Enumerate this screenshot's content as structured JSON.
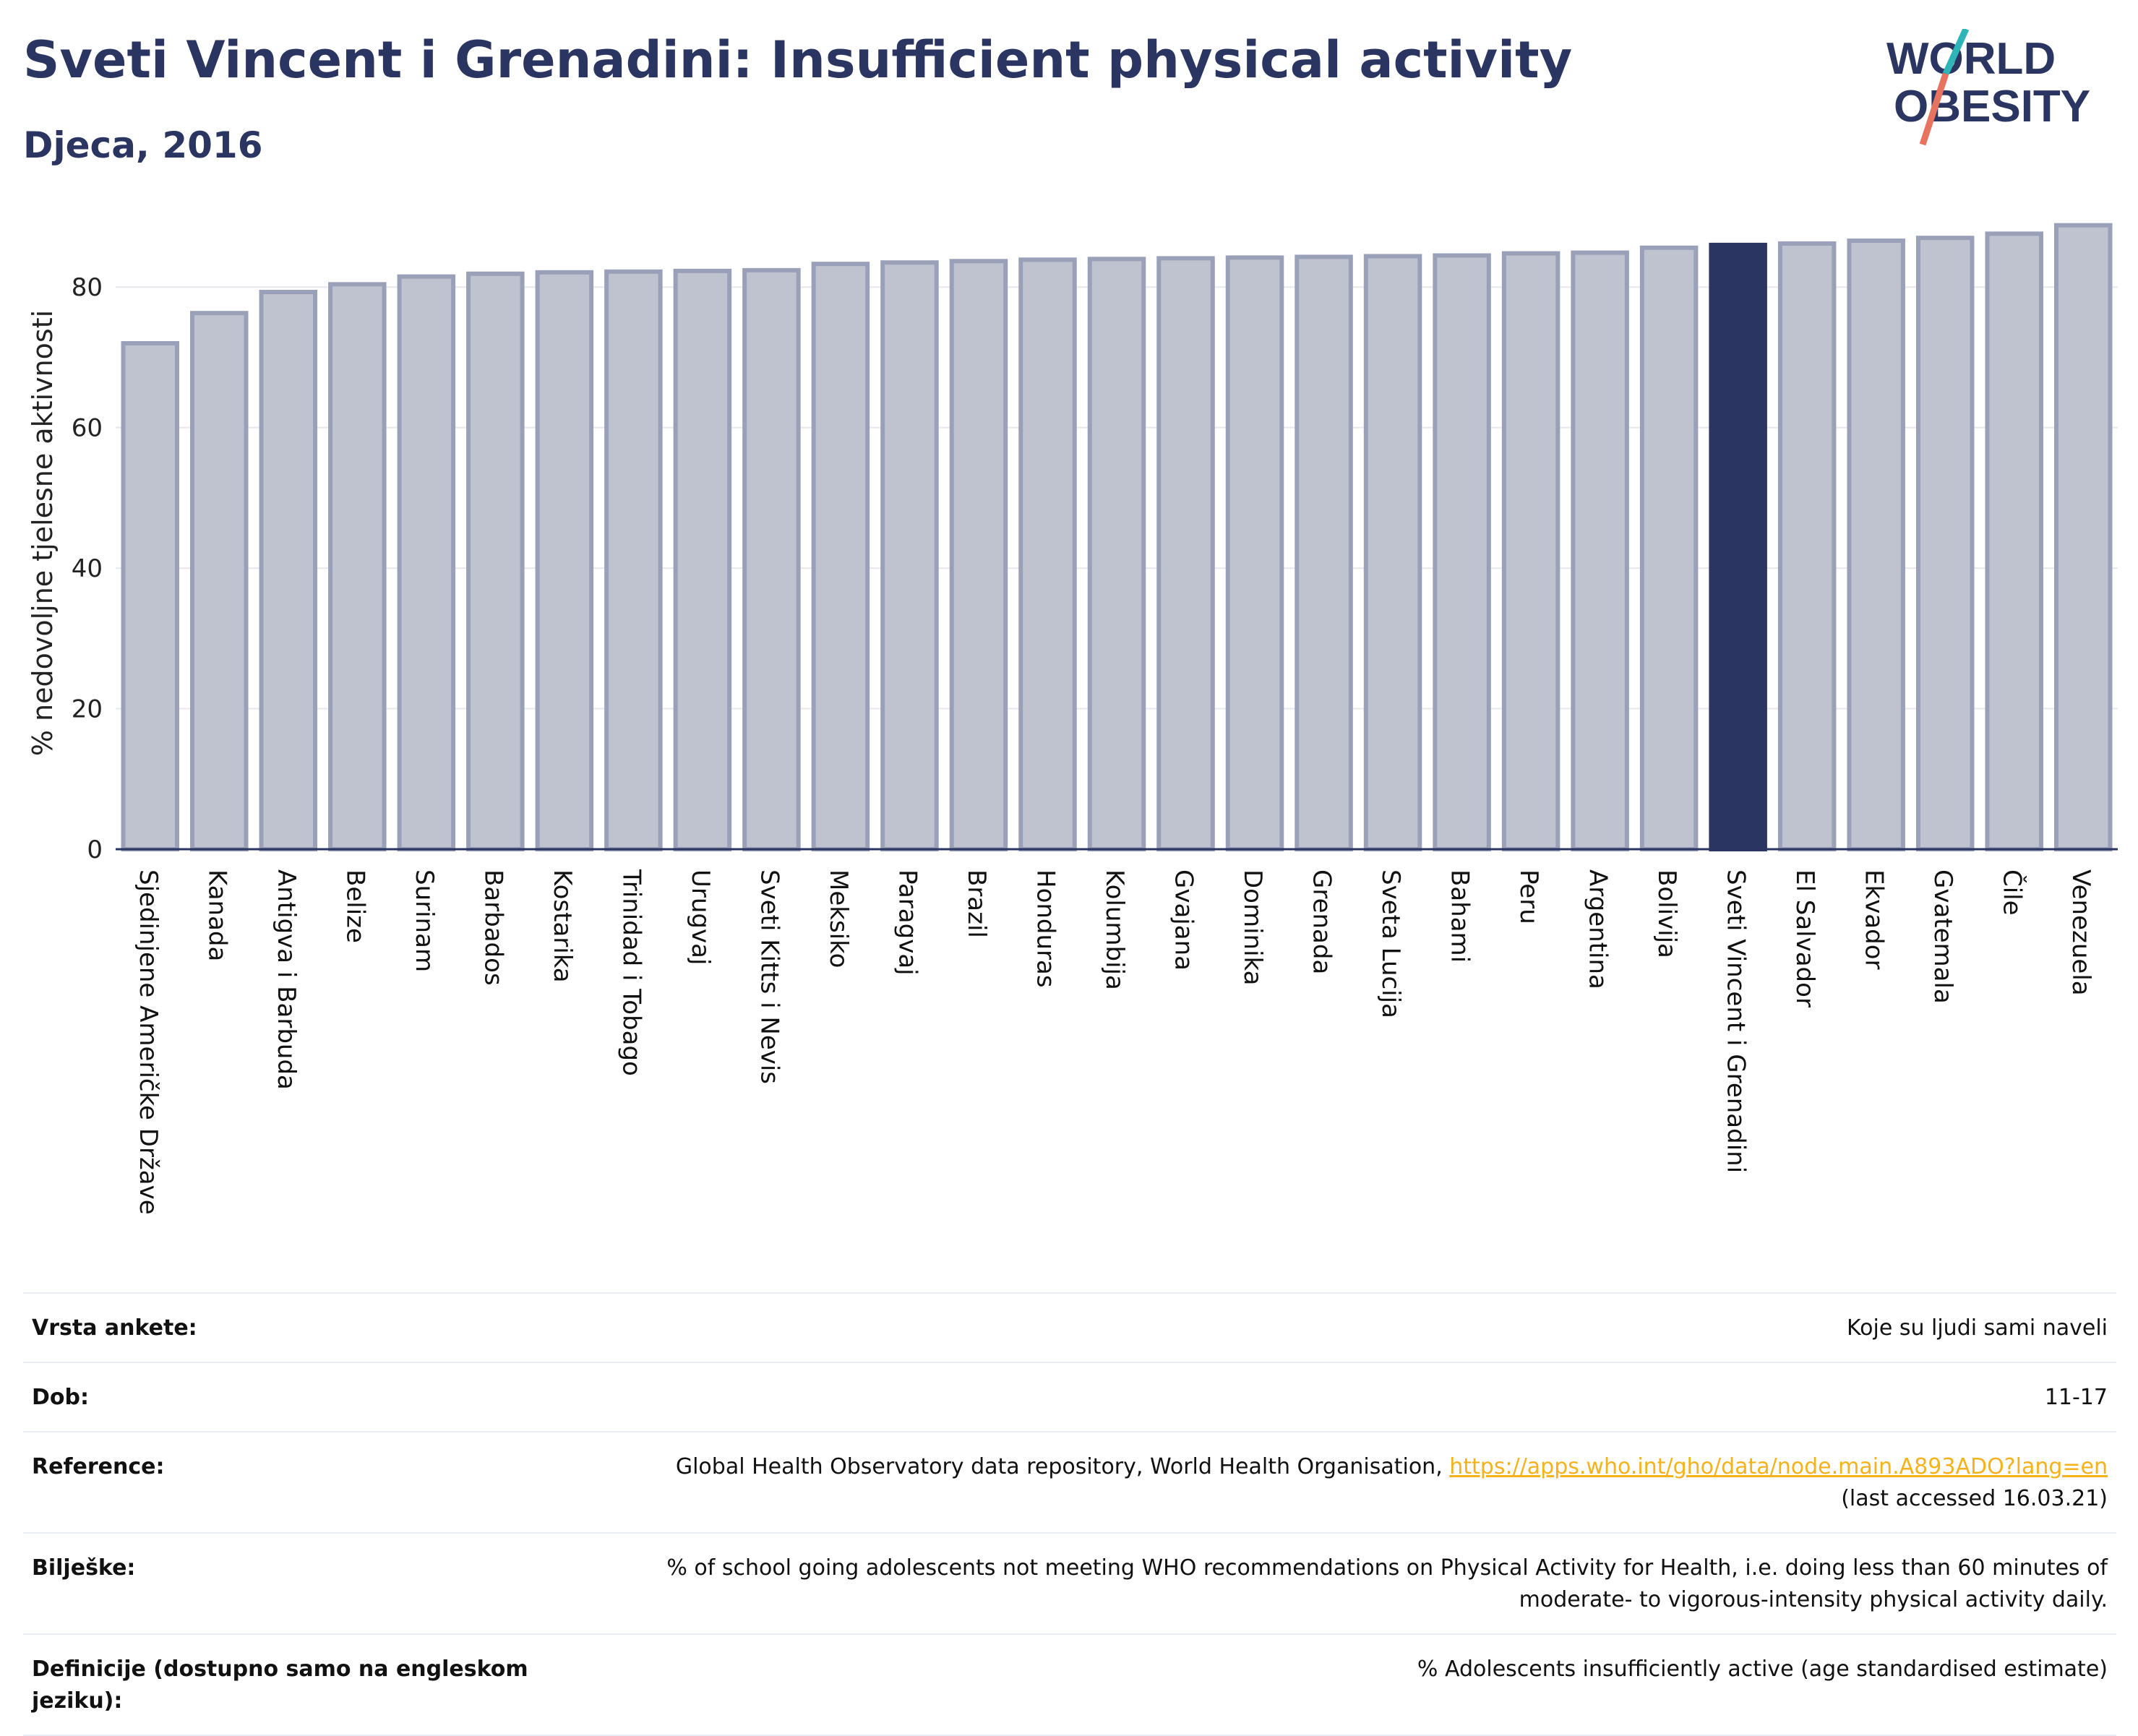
{
  "header": {
    "title": "Sveti Vincent i Grenadini: Insufficient physical activity",
    "subtitle": "Djeca, 2016"
  },
  "logo": {
    "line1": "WORLD",
    "line2": "OBESITY",
    "colors": {
      "text": "#2b3561",
      "slash_top": "#2fb5b7",
      "slash_bottom": "#e8735e"
    }
  },
  "colors": {
    "bar": "#bfc3d0",
    "bar_stroke": "#9aa0b8",
    "highlight": "#2b3561",
    "grid": "#e6e8ee"
  },
  "chart_data": {
    "type": "bar",
    "ylabel": "% nedovoljne tjelesne aktivnosti",
    "xlabel": "",
    "ylim": [
      0,
      90
    ],
    "yticks": [
      0,
      20,
      40,
      60,
      80
    ],
    "grid": true,
    "highlight": "Sveti Vincent i Grenadini",
    "categories": [
      "Sjedinjene Američke Države",
      "Kanada",
      "Antigva i Barbuda",
      "Belize",
      "Surinam",
      "Barbados",
      "Kostarika",
      "Trinidad i Tobago",
      "Urugvaj",
      "Sveti Kitts i Nevis",
      "Meksiko",
      "Paragvaj",
      "Brazil",
      "Honduras",
      "Kolumbija",
      "Gvajana",
      "Dominika",
      "Grenada",
      "Sveta Lucija",
      "Bahami",
      "Peru",
      "Argentina",
      "Bolivija",
      "Sveti Vincent i Grenadini",
      "El Salvador",
      "Ekvador",
      "Gvatemala",
      "Čile",
      "Venezuela"
    ],
    "values": [
      72.0,
      76.3,
      79.3,
      80.4,
      81.5,
      81.9,
      82.1,
      82.2,
      82.3,
      82.4,
      83.3,
      83.5,
      83.7,
      83.9,
      84.0,
      84.1,
      84.2,
      84.3,
      84.4,
      84.5,
      84.8,
      84.9,
      85.6,
      86.0,
      86.2,
      86.6,
      87.0,
      87.6,
      88.8
    ]
  },
  "info": {
    "survey_label": "Vrsta ankete:",
    "survey_value": "Koje su ljudi sami naveli",
    "age_label": "Dob:",
    "age_value": "11-17",
    "ref_label": "Reference:",
    "ref_text": "Global Health Observatory data repository, World Health Organisation, ",
    "ref_link": "https://apps.who.int/gho/data/node.main.A893ADO?lang=en",
    "ref_accessed": "(last accessed 16.03.21)",
    "notes_label": "Bilješke:",
    "notes_value": "% of school going adolescents not meeting WHO recommendations on Physical Activity for Health, i.e. doing less than 60 minutes of moderate- to vigorous-intensity physical activity daily.",
    "def_label": "Definicije (dostupno samo na engleskom jeziku):",
    "def_value": "% Adolescents insufficiently active (age standardised estimate)"
  }
}
